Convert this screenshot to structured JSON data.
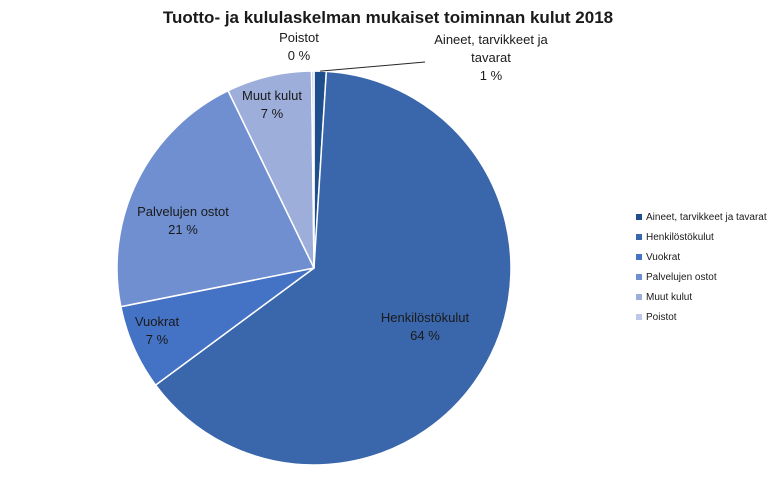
{
  "chart_data": {
    "type": "pie",
    "title": "Tuotto- ja kululaskelman mukaiset toiminnan kulut 2018",
    "slices": [
      {
        "name": "Aineet, tarvikkeet ja tavarat",
        "value": 1,
        "label_lines": [
          "Aineet, tarvikkeet ja",
          "tavarat"
        ],
        "pct_label": "1 %",
        "color": "#1f4e8c"
      },
      {
        "name": "Henkilöstökulut",
        "value": 64,
        "label_lines": [
          "Henkilöstökulut"
        ],
        "pct_label": "64 %",
        "color": "#3a66ab"
      },
      {
        "name": "Vuokrat",
        "value": 7,
        "label_lines": [
          "Vuokrat"
        ],
        "pct_label": "7 %",
        "color": "#4472c4"
      },
      {
        "name": "Palvelujen ostot",
        "value": 21,
        "label_lines": [
          "Palvelujen ostot"
        ],
        "pct_label": "21 %",
        "color": "#6f8fd0"
      },
      {
        "name": "Muut kulut",
        "value": 7,
        "label_lines": [
          "Muut kulut"
        ],
        "pct_label": "7 %",
        "color": "#9daedb"
      },
      {
        "name": "Poistot",
        "value": 0.2,
        "label_lines": [
          "Poistot"
        ],
        "pct_label": "0 %",
        "color": "#bcc9ea"
      }
    ],
    "legend": {
      "position": "right",
      "entries": [
        "Aineet, tarvikkeet ja tavarat",
        "Henkilöstökulut",
        "Vuokrat",
        "Palvelujen ostot",
        "Muut kulut",
        "Poistot"
      ]
    }
  }
}
